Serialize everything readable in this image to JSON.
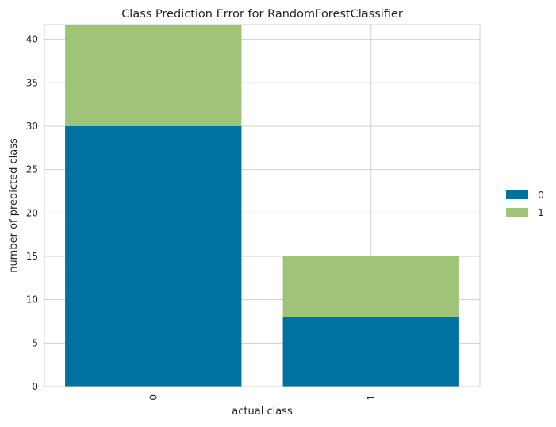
{
  "chart_data": {
    "type": "bar",
    "stacked": true,
    "title": "Class Prediction Error for RandomForestClassifier",
    "xlabel": "actual class",
    "ylabel": "number of predicted class",
    "categories": [
      "0",
      "1"
    ],
    "series": [
      {
        "name": "0",
        "values": [
          30,
          8
        ],
        "color": "#0072a2"
      },
      {
        "name": "1",
        "values": [
          11.7,
          7
        ],
        "color": "#9fc377"
      }
    ],
    "ylim": [
      0,
      41.7
    ],
    "yticks": [
      0,
      5,
      10,
      15,
      20,
      25,
      30,
      35,
      40
    ],
    "grid": true,
    "legend_position": "right",
    "x_tick_rotation": 90,
    "colors": {
      "background": "#ffffff",
      "grid": "#d0d0d0",
      "spine": "#d0d0d0"
    }
  }
}
